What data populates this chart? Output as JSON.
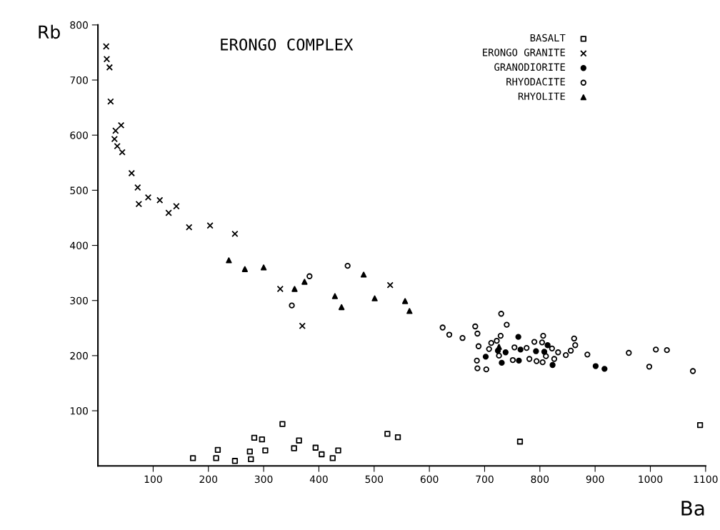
{
  "chart_data": {
    "type": "scatter",
    "title": "ERONGO COMPLEX",
    "xlabel": "Ba",
    "ylabel": "Rb",
    "xlim": [
      0,
      1100
    ],
    "ylim": [
      0,
      800
    ],
    "xticks": [
      100,
      200,
      300,
      400,
      500,
      600,
      700,
      800,
      900,
      1000,
      1100
    ],
    "yticks": [
      100,
      200,
      300,
      400,
      500,
      600,
      700,
      800
    ],
    "grid": false,
    "legend": "top right",
    "series": [
      {
        "name": "BASALT",
        "color": "#000000",
        "marker": "square",
        "x": [
          172,
          217,
          214,
          248,
          275,
          277,
          283,
          297,
          303,
          334,
          355,
          364,
          394,
          405,
          425,
          435,
          524,
          543,
          764,
          1090
        ],
        "values": [
          14,
          29,
          14,
          9,
          26,
          12,
          51,
          48,
          28,
          76,
          32,
          46,
          33,
          21,
          14,
          28,
          58,
          52,
          44,
          74
        ]
      },
      {
        "name": "ERONGO GRANITE",
        "color": "#000000",
        "marker": "cross",
        "x": [
          15,
          16,
          21,
          23,
          42,
          32,
          30,
          35,
          44,
          61,
          72,
          74,
          91,
          112,
          142,
          128,
          165,
          203,
          248,
          330,
          529,
          370
        ],
        "values": [
          761,
          738,
          723,
          661,
          618,
          608,
          593,
          580,
          569,
          531,
          505,
          475,
          487,
          482,
          471,
          459,
          433,
          436,
          421,
          321,
          328,
          254
        ]
      },
      {
        "name": "GRANODIORITE",
        "color": "#000000",
        "marker": "circle",
        "x": [
          702,
          731,
          738,
          761,
          765,
          762,
          793,
          808,
          814,
          823,
          901,
          917,
          724
        ],
        "values": [
          198,
          187,
          206,
          234,
          211,
          191,
          208,
          207,
          219,
          183,
          181,
          176,
          209
        ]
      },
      {
        "name": "RHYODACITE",
        "color": "#000000",
        "marker": "circle",
        "x": [
          383,
          452,
          351,
          624,
          636,
          660,
          683,
          687,
          689,
          686,
          687,
          703,
          708,
          712,
          722,
          729,
          730,
          740,
          726,
          754,
          751,
          776,
          781,
          790,
          794,
          804,
          806,
          805,
          811,
          822,
          826,
          833,
          847,
          856,
          862,
          864,
          886,
          961,
          1010,
          1030,
          998,
          1077
        ],
        "values": [
          344,
          363,
          291,
          251,
          238,
          232,
          253,
          240,
          217,
          191,
          177,
          175,
          212,
          223,
          227,
          236,
          276,
          256,
          200,
          215,
          192,
          214,
          194,
          225,
          190,
          224,
          236,
          188,
          199,
          213,
          194,
          206,
          201,
          209,
          231,
          219,
          202,
          205,
          211,
          210,
          180,
          172
        ]
      },
      {
        "name": "RHYOLITE",
        "color": "#000000",
        "marker": "triangle",
        "x": [
          237,
          266,
          300,
          356,
          374,
          429,
          441,
          481,
          501,
          556,
          564,
          726
        ],
        "values": [
          373,
          357,
          360,
          321,
          334,
          308,
          288,
          347,
          304,
          299,
          281,
          216
        ]
      }
    ]
  }
}
